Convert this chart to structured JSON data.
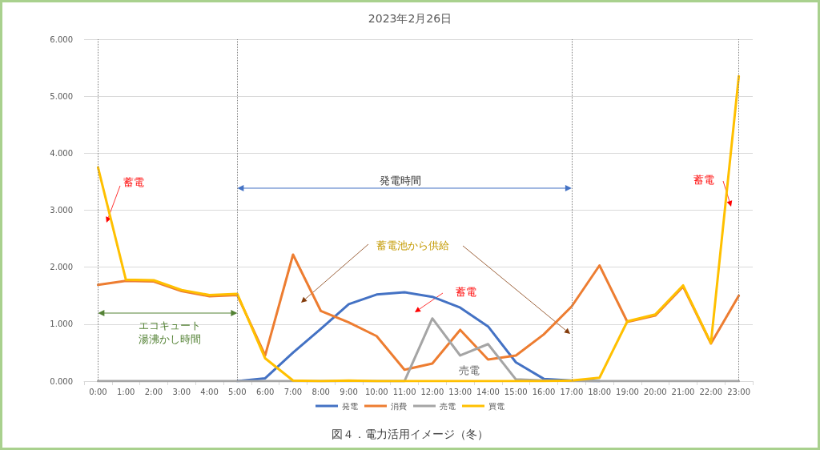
{
  "chart_data": {
    "type": "line",
    "title": "2023年2月26日",
    "categories": [
      "0:00",
      "1:00",
      "2:00",
      "3:00",
      "4:00",
      "5:00",
      "6:00",
      "7:00",
      "8:00",
      "9:00",
      "10:00",
      "11:00",
      "12:00",
      "13:00",
      "14:00",
      "15:00",
      "16:00",
      "17:00",
      "18:00",
      "19:00",
      "20:00",
      "21:00",
      "22:00",
      "23:00"
    ],
    "series": [
      {
        "name": "発電",
        "color": "#4472c4",
        "values": [
          null,
          null,
          null,
          null,
          null,
          0,
          0.05,
          0.5,
          0.92,
          1.35,
          1.52,
          1.56,
          1.48,
          1.29,
          0.96,
          0.33,
          0.04,
          0.01,
          0,
          null,
          null,
          null,
          null,
          null
        ]
      },
      {
        "name": "消費",
        "color": "#ed7d31",
        "values": [
          1.69,
          1.76,
          1.75,
          1.58,
          1.49,
          1.51,
          0.45,
          2.22,
          1.23,
          1.03,
          0.79,
          0.2,
          0.31,
          0.9,
          0.38,
          0.45,
          0.82,
          1.31,
          2.03,
          1.04,
          1.15,
          1.66,
          0.66,
          1.5
        ]
      },
      {
        "name": "売電",
        "color": "#a5a5a5",
        "values": [
          0,
          0,
          0,
          0,
          0,
          0,
          0,
          0,
          0,
          0,
          0,
          0,
          1.1,
          0.45,
          0.65,
          0.03,
          0.01,
          0,
          0,
          0,
          0,
          0,
          0,
          0
        ]
      },
      {
        "name": "買電",
        "color": "#ffc000",
        "values": [
          3.75,
          1.78,
          1.77,
          1.6,
          1.51,
          1.53,
          0.4,
          0.01,
          0,
          0.01,
          0,
          0,
          0,
          0,
          0,
          0,
          0,
          0.01,
          0.06,
          1.05,
          1.17,
          1.68,
          0.67,
          5.35
        ]
      }
    ],
    "ylim": [
      0,
      6
    ],
    "yticks": [
      {
        "value": 0,
        "label": "0.000"
      },
      {
        "value": 1,
        "label": "1.000"
      },
      {
        "value": 2,
        "label": "2.000"
      },
      {
        "value": 3,
        "label": "3.000"
      },
      {
        "value": 4,
        "label": "4.000"
      },
      {
        "value": 5,
        "label": "5.000"
      },
      {
        "value": 6,
        "label": "6.000"
      }
    ],
    "grid": "y",
    "legend": "bottom",
    "marker": "none",
    "line_style": "solid",
    "ref_lines": [
      {
        "axis": "x",
        "value": "0:00",
        "color": "#808080",
        "line_style": "dotted"
      },
      {
        "axis": "x",
        "value": "5:00",
        "color": "#808080",
        "line_style": "dotted"
      },
      {
        "axis": "x",
        "value": "17:00",
        "color": "#808080",
        "line_style": "dotted"
      },
      {
        "axis": "x",
        "value": "23:00",
        "color": "#808080",
        "line_style": "dotted"
      }
    ],
    "annotations": [
      "蓄電",
      "発電時間",
      "蓄電池から供給",
      "蓄電",
      "エコキュート湯沸かし時間",
      "売電",
      "蓄電",
      "図４．電力活用イメージ（冬）"
    ]
  }
}
